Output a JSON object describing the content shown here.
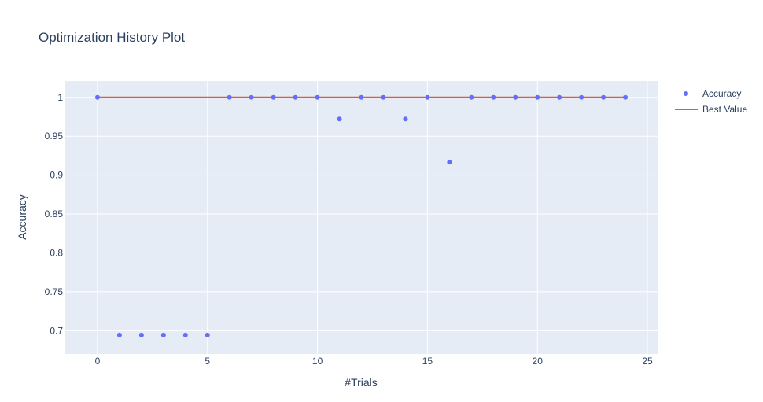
{
  "chart_data": {
    "type": "scatter",
    "title": "Optimization History Plot",
    "xlabel": "#Trials",
    "ylabel": "Accuracy",
    "xlim": [
      -1.5,
      25.5
    ],
    "ylim": [
      0.67,
      1.021
    ],
    "x_ticks": [
      0,
      5,
      10,
      15,
      20,
      25
    ],
    "x_tick_labels": [
      "0",
      "5",
      "10",
      "15",
      "20",
      "25"
    ],
    "y_ticks": [
      0.7,
      0.75,
      0.8,
      0.85,
      0.9,
      0.95,
      1.0
    ],
    "y_tick_labels": [
      "0.7",
      "0.75",
      "0.8",
      "0.85",
      "0.9",
      "0.95",
      "1"
    ],
    "grid": true,
    "legend_position": "top-right",
    "series": [
      {
        "name": "Accuracy",
        "kind": "markers",
        "color": "#636efa",
        "x": [
          0,
          1,
          2,
          3,
          4,
          5,
          6,
          7,
          8,
          9,
          10,
          11,
          12,
          13,
          14,
          15,
          16,
          17,
          18,
          19,
          20,
          21,
          22,
          23,
          24
        ],
        "y": [
          1.0,
          0.6944,
          0.6944,
          0.6944,
          0.6944,
          0.6944,
          1.0,
          1.0,
          1.0,
          1.0,
          1.0,
          0.9722,
          1.0,
          1.0,
          0.9722,
          1.0,
          0.9167,
          1.0,
          1.0,
          1.0,
          1.0,
          1.0,
          1.0,
          1.0,
          1.0
        ]
      },
      {
        "name": "Best Value",
        "kind": "line",
        "color": "#ef553b",
        "x": [
          0,
          1,
          2,
          3,
          4,
          5,
          6,
          7,
          8,
          9,
          10,
          11,
          12,
          13,
          14,
          15,
          16,
          17,
          18,
          19,
          20,
          21,
          22,
          23,
          24
        ],
        "y": [
          1,
          1,
          1,
          1,
          1,
          1,
          1,
          1,
          1,
          1,
          1,
          1,
          1,
          1,
          1,
          1,
          1,
          1,
          1,
          1,
          1,
          1,
          1,
          1,
          1
        ]
      }
    ],
    "plot_bgcolor": "#e5ecf6",
    "grid_color": "#ffffff"
  }
}
